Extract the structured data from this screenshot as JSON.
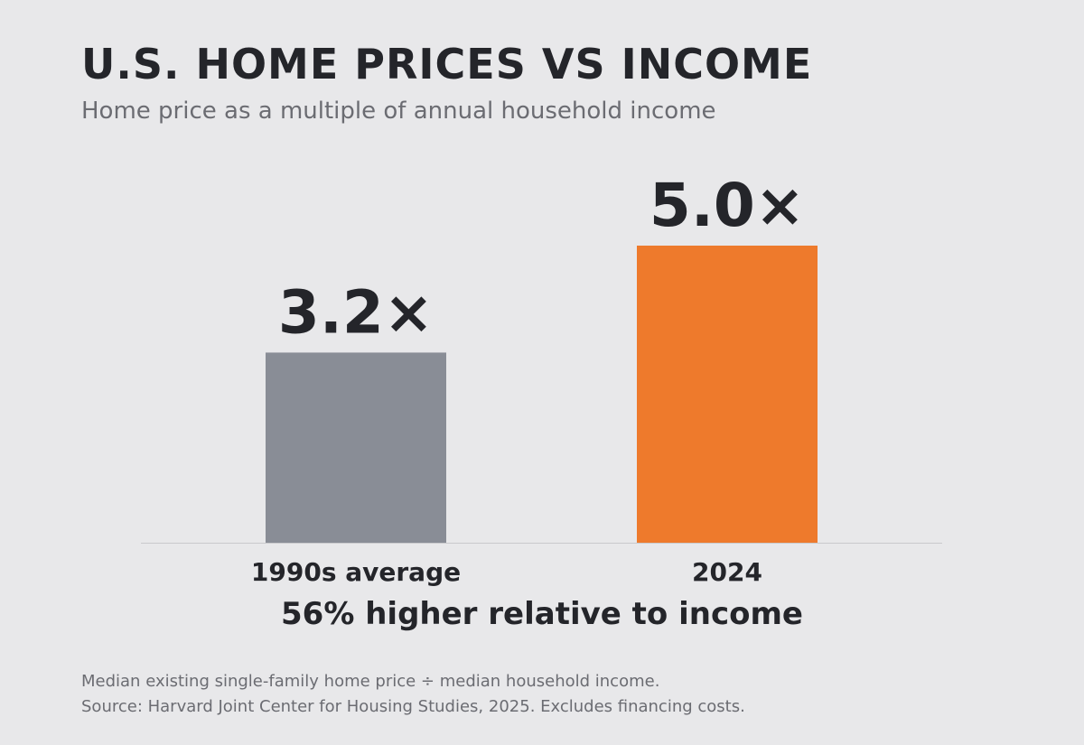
{
  "header": {
    "title": "U.S. HOME PRICES VS INCOME",
    "subtitle": "Home price as a multiple of annual household income"
  },
  "takeaway": "56% higher relative to income",
  "footer": {
    "note": "Median existing single-family home price ÷ median household income.",
    "source": "Source: Harvard Joint Center for Housing Studies, 2025. Excludes financing costs."
  },
  "colors": {
    "background": "#e8e8ea",
    "text": "#24252a",
    "muted_text": "#6b6c72",
    "bar_1990s": "#898d96",
    "bar_2024": "#ee7a2c",
    "axis_line": "#c9c9cc"
  },
  "chart_data": {
    "type": "bar",
    "title": "U.S. HOME PRICES VS INCOME",
    "subtitle": "Home price as a multiple of annual household income",
    "categories": [
      "1990s average",
      "2024"
    ],
    "values": [
      3.2,
      5.0
    ],
    "data_labels": [
      "3.2×",
      "5.0×"
    ],
    "bar_colors": [
      "#898d96",
      "#ee7a2c"
    ],
    "xlabel": "",
    "ylabel": "",
    "ylim": [
      0,
      6
    ],
    "grid": false,
    "legend": "none"
  }
}
